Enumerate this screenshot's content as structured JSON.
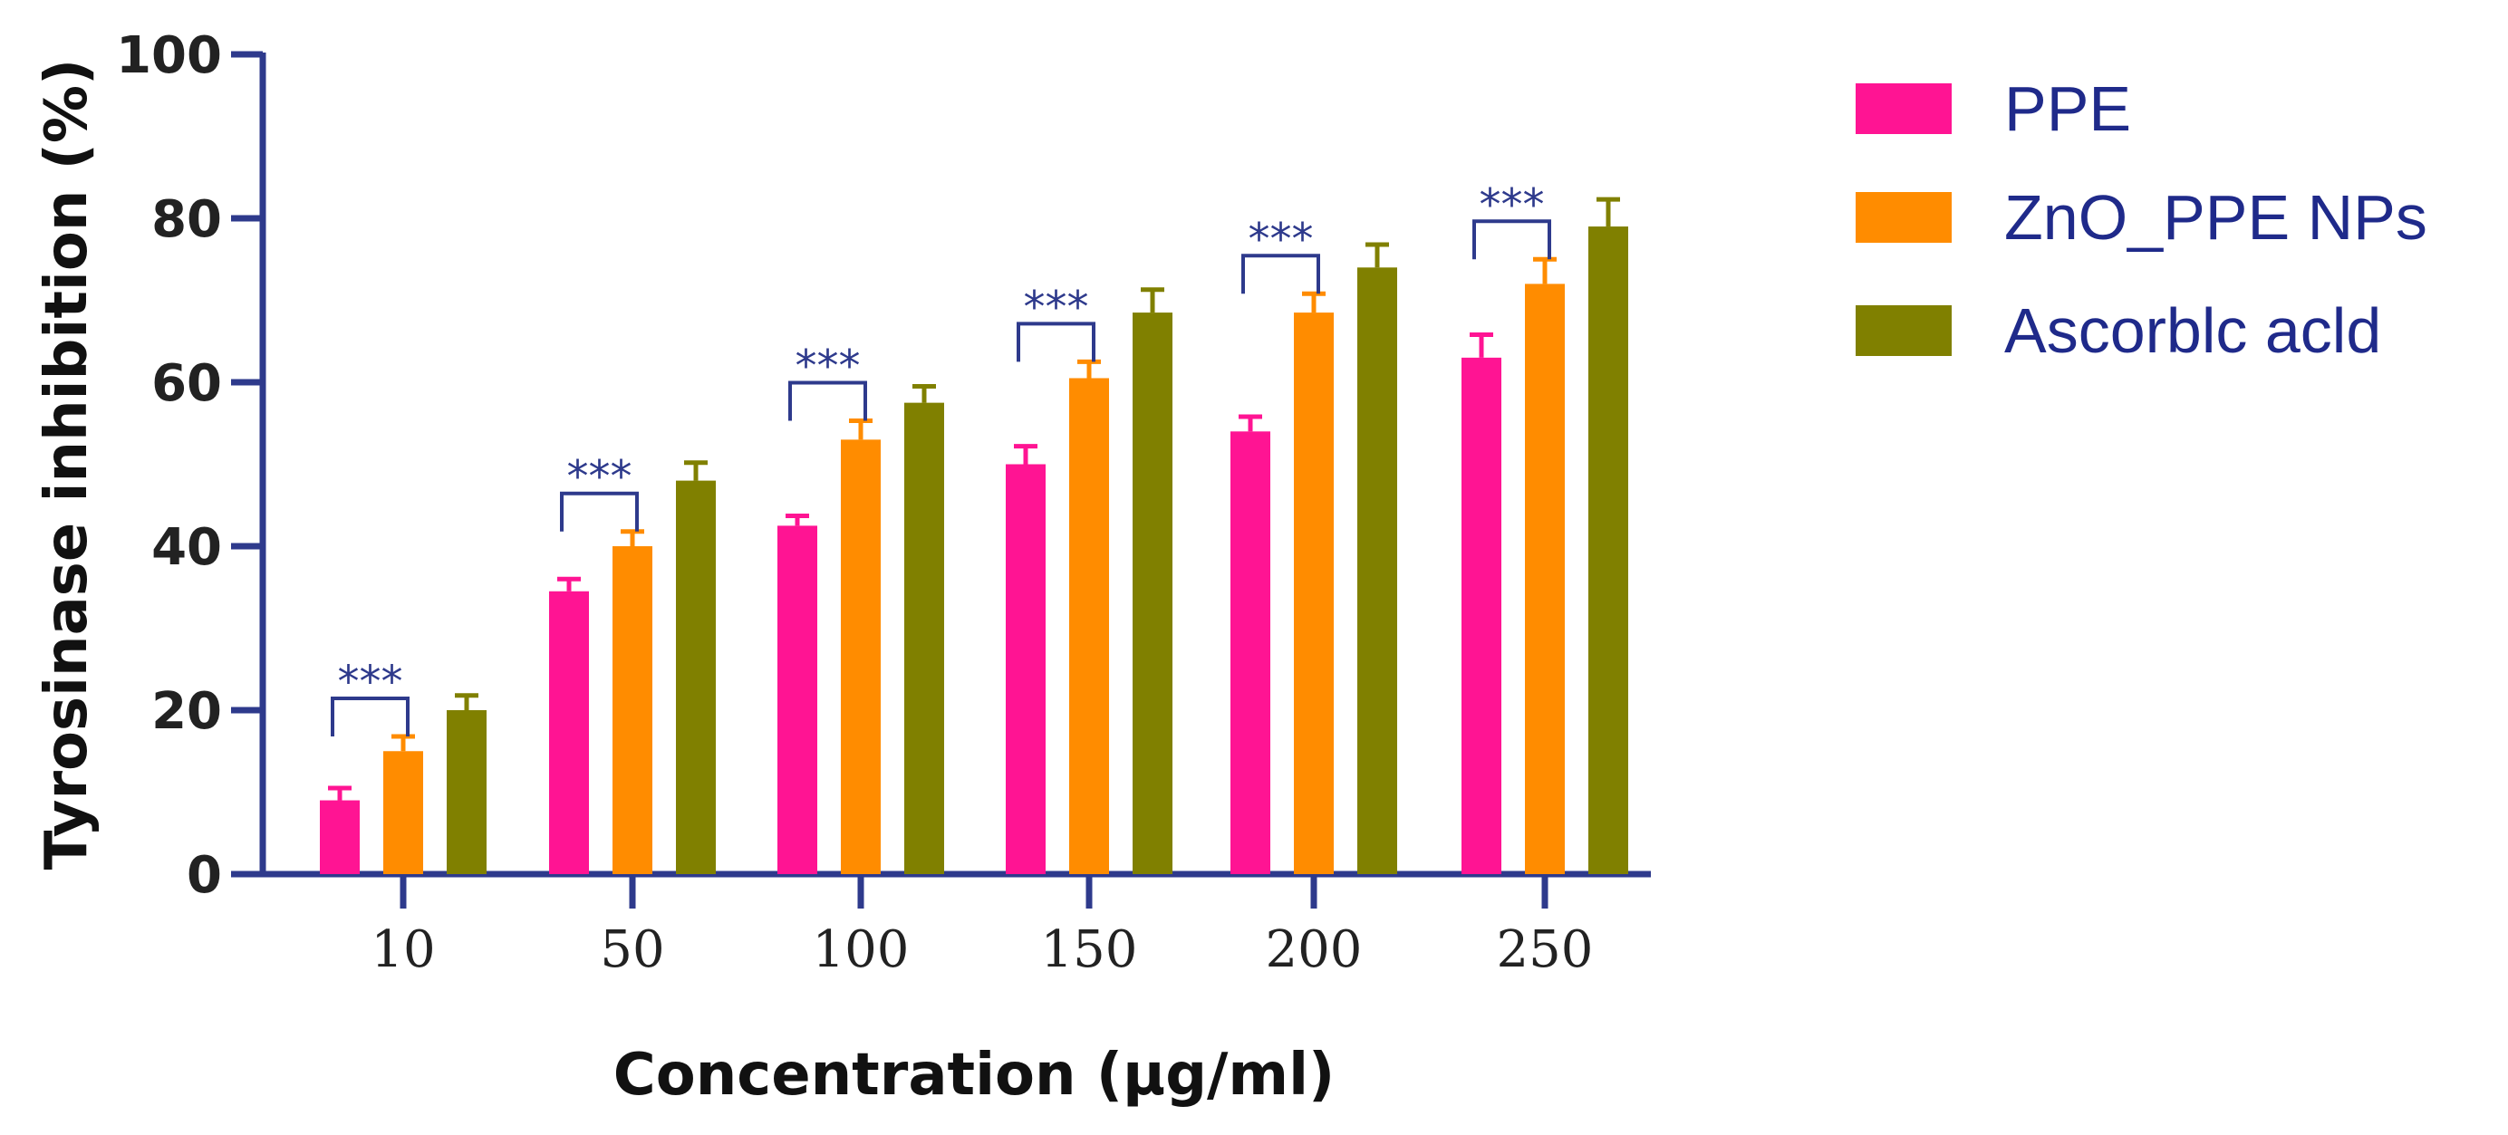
{
  "colors": {
    "axis": "#2e3a8c",
    "ppe": "#ff1493",
    "zno": "#ff8c00",
    "ascorbic": "#808000",
    "sig": "#2e3a8c",
    "legend_text": "#1f2a8a"
  },
  "chart_data": {
    "type": "bar",
    "title": "",
    "xlabel": "Concentration (µg/ml)",
    "ylabel": "Tyrosinase inhibition (%)",
    "ylim": [
      0,
      100
    ],
    "yticks": [
      "0",
      "20",
      "40",
      "60",
      "80",
      "100"
    ],
    "categories": [
      "10",
      "50",
      "100",
      "150",
      "200",
      "250"
    ],
    "series": [
      {
        "name": "PPE",
        "values": [
          9,
          34.5,
          42.5,
          50,
          54,
          63
        ],
        "errors": [
          1.5,
          1.5,
          1.2,
          2.2,
          1.8,
          2.8
        ]
      },
      {
        "name": "ZnO_PPE NPs",
        "values": [
          15,
          40,
          53,
          60.5,
          68.5,
          72
        ],
        "errors": [
          1.8,
          1.8,
          2.3,
          2,
          2.3,
          3
        ]
      },
      {
        "name": "Ascorblc acld",
        "values": [
          20,
          48,
          57.5,
          68.5,
          74,
          79
        ],
        "errors": [
          1.8,
          2.2,
          2,
          2.8,
          2.8,
          3.3
        ]
      }
    ],
    "significance": [
      {
        "label": "***",
        "category": "10"
      },
      {
        "label": "***",
        "category": "50"
      },
      {
        "label": "***",
        "category": "100"
      },
      {
        "label": "***",
        "category": "150"
      },
      {
        "label": "***",
        "category": "200"
      },
      {
        "label": "***",
        "category": "250"
      }
    ],
    "legend_position": "top-right"
  }
}
